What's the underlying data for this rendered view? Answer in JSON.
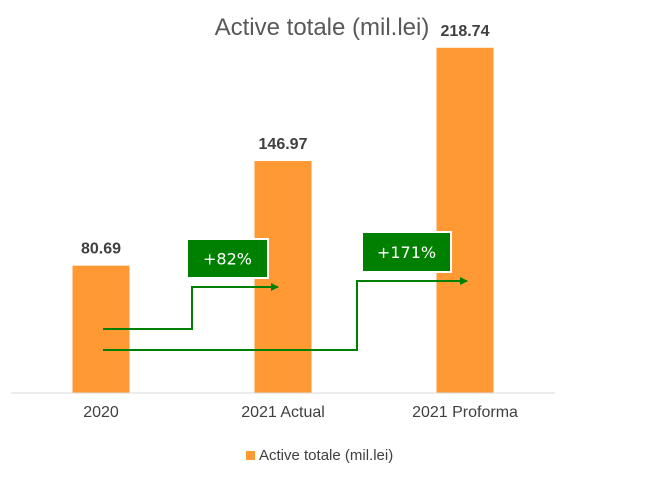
{
  "chart_data": {
    "type": "bar",
    "title": "Active totale (mil.lei)",
    "categories": [
      "2020",
      "2021 Actual",
      "2021 Proforma"
    ],
    "series": [
      {
        "name": "Active totale (mil.lei)",
        "values": [
          80.69,
          146.97,
          218.74
        ]
      }
    ],
    "data_labels": [
      "80.69",
      "146.97",
      "218.74"
    ],
    "ylim": [
      0,
      230
    ],
    "grid": false,
    "legend": "bottom",
    "annotations": [
      {
        "text": "+82%",
        "from": "2020",
        "to": "2021 Actual"
      },
      {
        "text": "+171%",
        "from": "2020",
        "to": "2021 Proforma"
      }
    ]
  },
  "colors": {
    "bar": "#FF9933",
    "annotation": "#008000",
    "axis": "#d9d9d9"
  }
}
